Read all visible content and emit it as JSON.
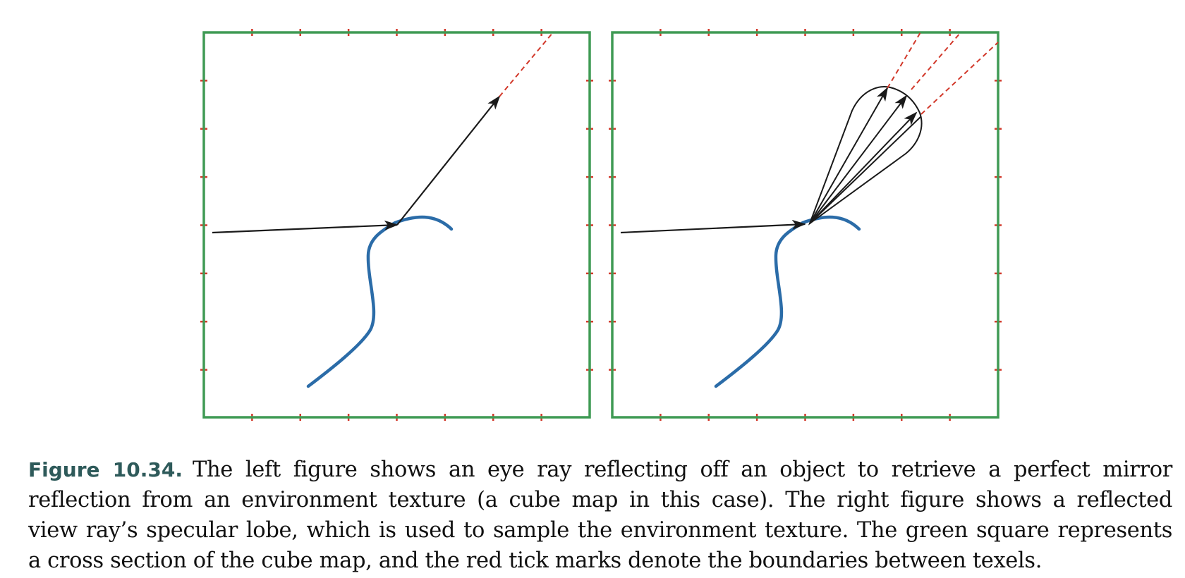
{
  "caption": {
    "label": "Figure 10.34.",
    "line1": "The left figure shows an eye ray reflecting off an object to retrieve a perfect mirror",
    "line2": "reflection from an environment texture (a cube map in this case). The right figure shows a reflected",
    "line3": "view ray’s specular lobe, which is used to sample the environment texture. The green square represents",
    "line4": "a cross section of the cube map, and the red tick marks denote the boundaries between texels."
  },
  "colors": {
    "cube_map_square": "#3f9a54",
    "texel_tick": "#d2392b",
    "object_curve": "#2b6ca8",
    "ray": "#1a1a1a",
    "extension": "#d2392b"
  },
  "panels": [
    {
      "name": "left",
      "mode": "perfect-mirror",
      "reflected_rays": 1
    },
    {
      "name": "right",
      "mode": "specular-lobe",
      "reflected_rays": 4
    }
  ],
  "ticks_per_side": 7
}
